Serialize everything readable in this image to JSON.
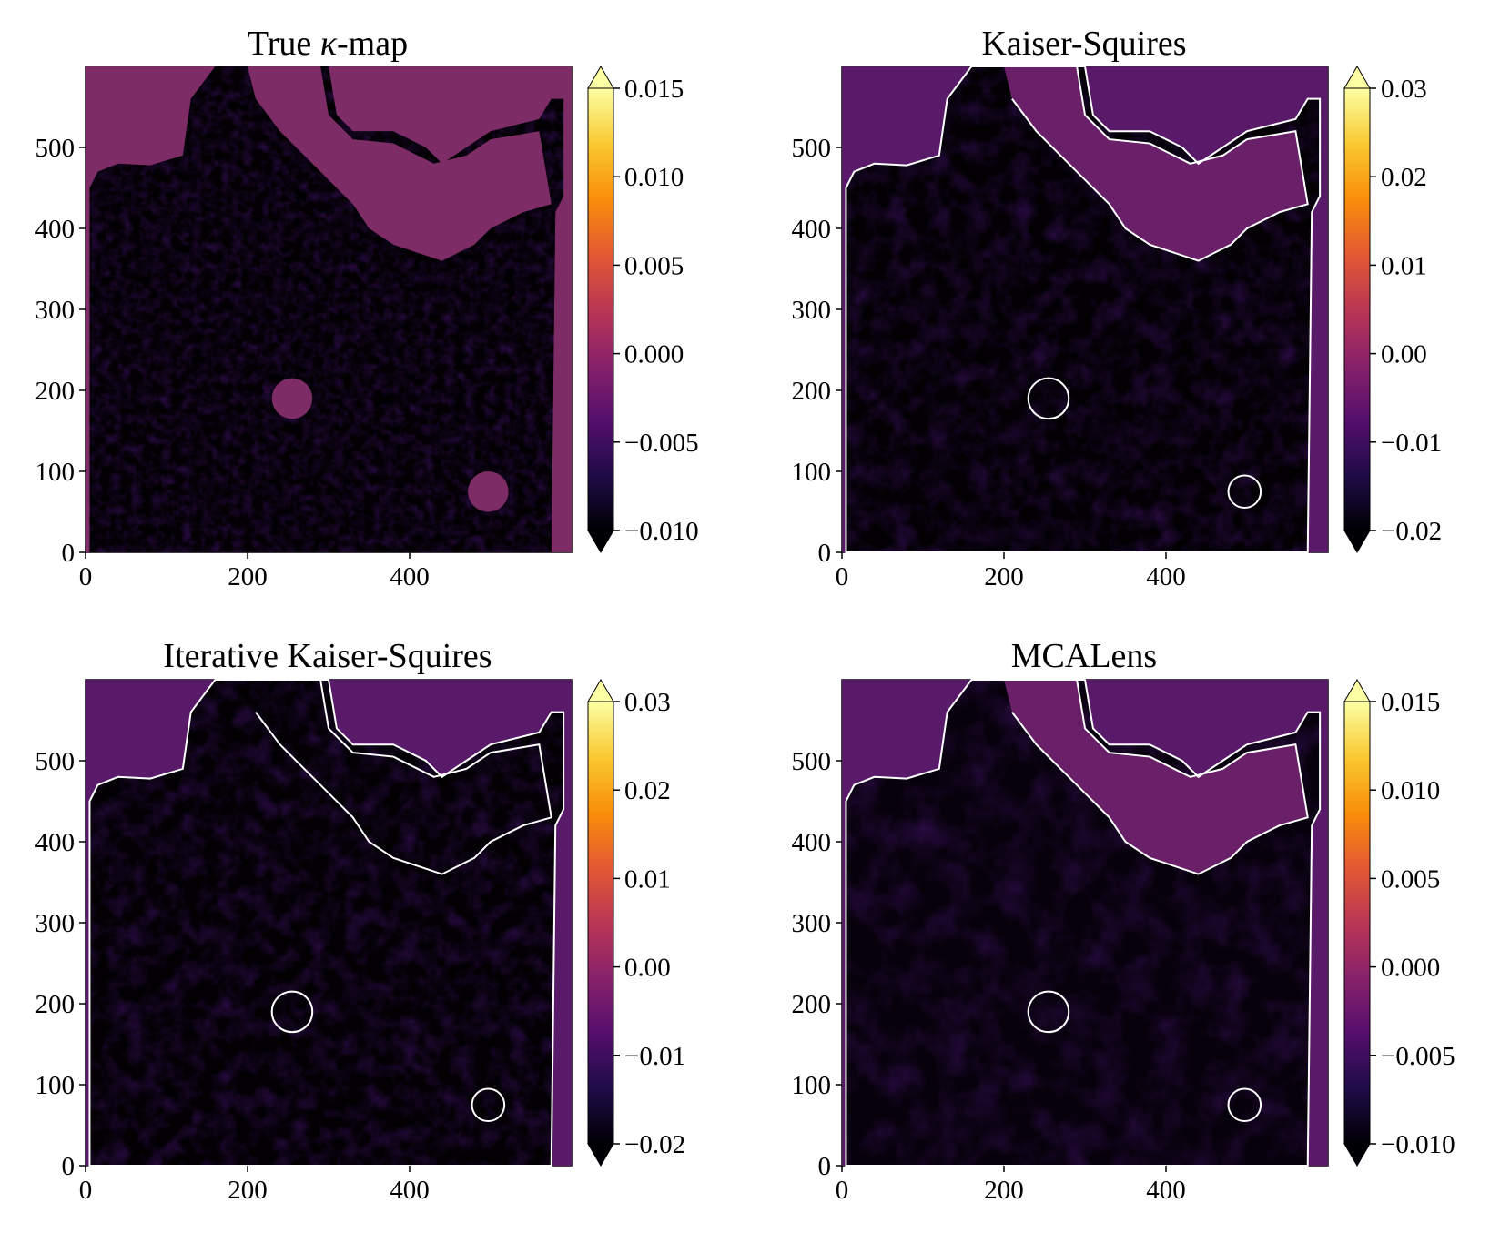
{
  "figure": {
    "panels": 4,
    "colormap": [
      "#000004",
      "#1f0c48",
      "#550f6d",
      "#88226a",
      "#ba3655",
      "#e35933",
      "#f98e09",
      "#f9c932",
      "#fcffa4"
    ],
    "colors": {
      "contour": "#ffffff",
      "masked": "#7e2c66",
      "axis": "#000000"
    }
  },
  "chart_data": [
    {
      "type": "heatmap",
      "title": "True κ-map",
      "title_main": "True ",
      "title_symbol": "κ",
      "title_suffix": "-map",
      "xlim": [
        0,
        600
      ],
      "ylim": [
        0,
        600
      ],
      "xticks": [
        0,
        200,
        400
      ],
      "xtick_labels": [
        "0",
        "200",
        "400"
      ],
      "yticks": [
        0,
        100,
        200,
        300,
        400,
        500
      ],
      "ytick_labels": [
        "0",
        "100",
        "200",
        "300",
        "400",
        "500"
      ],
      "colorbar": {
        "vmin": -0.01,
        "vmax": 0.015,
        "ticks": [
          -0.01,
          -0.005,
          0.0,
          0.005,
          0.01,
          0.015
        ],
        "tick_labels": [
          "−0.010",
          "−0.005",
          "0.000",
          "0.005",
          "0.010",
          "0.015"
        ],
        "extend": "both"
      },
      "contour": false,
      "holes": [
        [
          255,
          190,
          25
        ],
        [
          497,
          75,
          25
        ]
      ]
    },
    {
      "type": "heatmap",
      "title": "Kaiser-Squires",
      "xlim": [
        0,
        600
      ],
      "ylim": [
        0,
        600
      ],
      "xticks": [
        0,
        200,
        400
      ],
      "xtick_labels": [
        "0",
        "200",
        "400"
      ],
      "yticks": [
        0,
        100,
        200,
        300,
        400,
        500
      ],
      "ytick_labels": [
        "0",
        "100",
        "200",
        "300",
        "400",
        "500"
      ],
      "colorbar": {
        "vmin": -0.02,
        "vmax": 0.03,
        "ticks": [
          -0.02,
          -0.01,
          0.0,
          0.01,
          0.02,
          0.03
        ],
        "tick_labels": [
          "−0.02",
          "−0.01",
          "0.00",
          "0.01",
          "0.02",
          "0.03"
        ],
        "extend": "both"
      },
      "contour": true,
      "holes": [
        [
          255,
          190,
          25
        ],
        [
          497,
          75,
          20
        ]
      ]
    },
    {
      "type": "heatmap",
      "title": "Iterative Kaiser-Squires",
      "xlim": [
        0,
        600
      ],
      "ylim": [
        0,
        600
      ],
      "xticks": [
        0,
        200,
        400
      ],
      "xtick_labels": [
        "0",
        "200",
        "400"
      ],
      "yticks": [
        0,
        100,
        200,
        300,
        400,
        500
      ],
      "ytick_labels": [
        "0",
        "100",
        "200",
        "300",
        "400",
        "500"
      ],
      "colorbar": {
        "vmin": -0.02,
        "vmax": 0.03,
        "ticks": [
          -0.02,
          -0.01,
          0.0,
          0.01,
          0.02,
          0.03
        ],
        "tick_labels": [
          "−0.02",
          "−0.01",
          "0.00",
          "0.01",
          "0.02",
          "0.03"
        ],
        "extend": "both"
      },
      "contour": true,
      "holes": [
        [
          255,
          190,
          25
        ],
        [
          497,
          75,
          20
        ]
      ]
    },
    {
      "type": "heatmap",
      "title": "MCALens",
      "xlim": [
        0,
        600
      ],
      "ylim": [
        0,
        600
      ],
      "xticks": [
        0,
        200,
        400
      ],
      "xtick_labels": [
        "0",
        "200",
        "400"
      ],
      "yticks": [
        0,
        100,
        200,
        300,
        400,
        500
      ],
      "ytick_labels": [
        "0",
        "100",
        "200",
        "300",
        "400",
        "500"
      ],
      "colorbar": {
        "vmin": -0.01,
        "vmax": 0.015,
        "ticks": [
          -0.01,
          -0.005,
          0.0,
          0.005,
          0.01,
          0.015
        ],
        "tick_labels": [
          "−0.010",
          "−0.005",
          "0.000",
          "0.005",
          "0.010",
          "0.015"
        ],
        "extend": "both"
      },
      "contour": true,
      "holes": [
        [
          255,
          190,
          25
        ],
        [
          497,
          75,
          20
        ]
      ]
    }
  ],
  "mask_outline": [
    [
      5,
      0
    ],
    [
      5,
      450
    ],
    [
      15,
      470
    ],
    [
      40,
      480
    ],
    [
      80,
      478
    ],
    [
      120,
      490
    ],
    [
      130,
      560
    ],
    [
      160,
      600
    ],
    [
      300,
      600
    ],
    [
      310,
      540
    ],
    [
      330,
      520
    ],
    [
      380,
      520
    ],
    [
      420,
      500
    ],
    [
      440,
      480
    ],
    [
      470,
      500
    ],
    [
      500,
      520
    ],
    [
      560,
      535
    ],
    [
      575,
      560
    ],
    [
      590,
      560
    ],
    [
      590,
      440
    ],
    [
      580,
      420
    ],
    [
      575,
      0
    ]
  ],
  "empty_region": [
    [
      200,
      600
    ],
    [
      290,
      600
    ],
    [
      300,
      540
    ],
    [
      330,
      510
    ],
    [
      380,
      505
    ],
    [
      430,
      480
    ],
    [
      470,
      490
    ],
    [
      500,
      510
    ],
    [
      560,
      520
    ],
    [
      575,
      430
    ],
    [
      540,
      420
    ],
    [
      500,
      400
    ],
    [
      480,
      380
    ],
    [
      440,
      360
    ],
    [
      410,
      370
    ],
    [
      380,
      380
    ],
    [
      350,
      400
    ],
    [
      330,
      430
    ],
    [
      300,
      460
    ],
    [
      270,
      490
    ],
    [
      240,
      520
    ],
    [
      210,
      560
    ]
  ]
}
